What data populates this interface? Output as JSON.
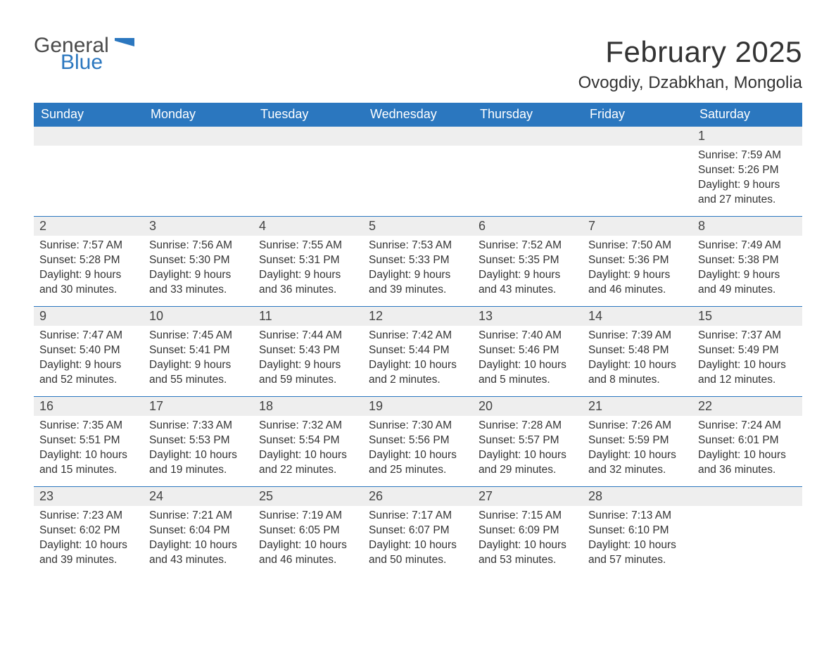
{
  "logo": {
    "word1": "General",
    "word2": "Blue",
    "flag_color": "#2b77bf"
  },
  "title": "February 2025",
  "location": "Ovogdiy, Dzabkhan, Mongolia",
  "colors": {
    "header_bg": "#2b77bf",
    "header_text": "#ffffff",
    "daynum_bg": "#eeeeee",
    "daynum_border": "#2b77bf",
    "body_bg": "#ffffff",
    "text": "#333333"
  },
  "day_headers": [
    "Sunday",
    "Monday",
    "Tuesday",
    "Wednesday",
    "Thursday",
    "Friday",
    "Saturday"
  ],
  "weeks": [
    [
      {
        "n": "",
        "sunrise": "",
        "sunset": "",
        "daylight": ""
      },
      {
        "n": "",
        "sunrise": "",
        "sunset": "",
        "daylight": ""
      },
      {
        "n": "",
        "sunrise": "",
        "sunset": "",
        "daylight": ""
      },
      {
        "n": "",
        "sunrise": "",
        "sunset": "",
        "daylight": ""
      },
      {
        "n": "",
        "sunrise": "",
        "sunset": "",
        "daylight": ""
      },
      {
        "n": "",
        "sunrise": "",
        "sunset": "",
        "daylight": ""
      },
      {
        "n": "1",
        "sunrise": "Sunrise: 7:59 AM",
        "sunset": "Sunset: 5:26 PM",
        "daylight": "Daylight: 9 hours and 27 minutes."
      }
    ],
    [
      {
        "n": "2",
        "sunrise": "Sunrise: 7:57 AM",
        "sunset": "Sunset: 5:28 PM",
        "daylight": "Daylight: 9 hours and 30 minutes."
      },
      {
        "n": "3",
        "sunrise": "Sunrise: 7:56 AM",
        "sunset": "Sunset: 5:30 PM",
        "daylight": "Daylight: 9 hours and 33 minutes."
      },
      {
        "n": "4",
        "sunrise": "Sunrise: 7:55 AM",
        "sunset": "Sunset: 5:31 PM",
        "daylight": "Daylight: 9 hours and 36 minutes."
      },
      {
        "n": "5",
        "sunrise": "Sunrise: 7:53 AM",
        "sunset": "Sunset: 5:33 PM",
        "daylight": "Daylight: 9 hours and 39 minutes."
      },
      {
        "n": "6",
        "sunrise": "Sunrise: 7:52 AM",
        "sunset": "Sunset: 5:35 PM",
        "daylight": "Daylight: 9 hours and 43 minutes."
      },
      {
        "n": "7",
        "sunrise": "Sunrise: 7:50 AM",
        "sunset": "Sunset: 5:36 PM",
        "daylight": "Daylight: 9 hours and 46 minutes."
      },
      {
        "n": "8",
        "sunrise": "Sunrise: 7:49 AM",
        "sunset": "Sunset: 5:38 PM",
        "daylight": "Daylight: 9 hours and 49 minutes."
      }
    ],
    [
      {
        "n": "9",
        "sunrise": "Sunrise: 7:47 AM",
        "sunset": "Sunset: 5:40 PM",
        "daylight": "Daylight: 9 hours and 52 minutes."
      },
      {
        "n": "10",
        "sunrise": "Sunrise: 7:45 AM",
        "sunset": "Sunset: 5:41 PM",
        "daylight": "Daylight: 9 hours and 55 minutes."
      },
      {
        "n": "11",
        "sunrise": "Sunrise: 7:44 AM",
        "sunset": "Sunset: 5:43 PM",
        "daylight": "Daylight: 9 hours and 59 minutes."
      },
      {
        "n": "12",
        "sunrise": "Sunrise: 7:42 AM",
        "sunset": "Sunset: 5:44 PM",
        "daylight": "Daylight: 10 hours and 2 minutes."
      },
      {
        "n": "13",
        "sunrise": "Sunrise: 7:40 AM",
        "sunset": "Sunset: 5:46 PM",
        "daylight": "Daylight: 10 hours and 5 minutes."
      },
      {
        "n": "14",
        "sunrise": "Sunrise: 7:39 AM",
        "sunset": "Sunset: 5:48 PM",
        "daylight": "Daylight: 10 hours and 8 minutes."
      },
      {
        "n": "15",
        "sunrise": "Sunrise: 7:37 AM",
        "sunset": "Sunset: 5:49 PM",
        "daylight": "Daylight: 10 hours and 12 minutes."
      }
    ],
    [
      {
        "n": "16",
        "sunrise": "Sunrise: 7:35 AM",
        "sunset": "Sunset: 5:51 PM",
        "daylight": "Daylight: 10 hours and 15 minutes."
      },
      {
        "n": "17",
        "sunrise": "Sunrise: 7:33 AM",
        "sunset": "Sunset: 5:53 PM",
        "daylight": "Daylight: 10 hours and 19 minutes."
      },
      {
        "n": "18",
        "sunrise": "Sunrise: 7:32 AM",
        "sunset": "Sunset: 5:54 PM",
        "daylight": "Daylight: 10 hours and 22 minutes."
      },
      {
        "n": "19",
        "sunrise": "Sunrise: 7:30 AM",
        "sunset": "Sunset: 5:56 PM",
        "daylight": "Daylight: 10 hours and 25 minutes."
      },
      {
        "n": "20",
        "sunrise": "Sunrise: 7:28 AM",
        "sunset": "Sunset: 5:57 PM",
        "daylight": "Daylight: 10 hours and 29 minutes."
      },
      {
        "n": "21",
        "sunrise": "Sunrise: 7:26 AM",
        "sunset": "Sunset: 5:59 PM",
        "daylight": "Daylight: 10 hours and 32 minutes."
      },
      {
        "n": "22",
        "sunrise": "Sunrise: 7:24 AM",
        "sunset": "Sunset: 6:01 PM",
        "daylight": "Daylight: 10 hours and 36 minutes."
      }
    ],
    [
      {
        "n": "23",
        "sunrise": "Sunrise: 7:23 AM",
        "sunset": "Sunset: 6:02 PM",
        "daylight": "Daylight: 10 hours and 39 minutes."
      },
      {
        "n": "24",
        "sunrise": "Sunrise: 7:21 AM",
        "sunset": "Sunset: 6:04 PM",
        "daylight": "Daylight: 10 hours and 43 minutes."
      },
      {
        "n": "25",
        "sunrise": "Sunrise: 7:19 AM",
        "sunset": "Sunset: 6:05 PM",
        "daylight": "Daylight: 10 hours and 46 minutes."
      },
      {
        "n": "26",
        "sunrise": "Sunrise: 7:17 AM",
        "sunset": "Sunset: 6:07 PM",
        "daylight": "Daylight: 10 hours and 50 minutes."
      },
      {
        "n": "27",
        "sunrise": "Sunrise: 7:15 AM",
        "sunset": "Sunset: 6:09 PM",
        "daylight": "Daylight: 10 hours and 53 minutes."
      },
      {
        "n": "28",
        "sunrise": "Sunrise: 7:13 AM",
        "sunset": "Sunset: 6:10 PM",
        "daylight": "Daylight: 10 hours and 57 minutes."
      },
      {
        "n": "",
        "sunrise": "",
        "sunset": "",
        "daylight": ""
      }
    ]
  ]
}
